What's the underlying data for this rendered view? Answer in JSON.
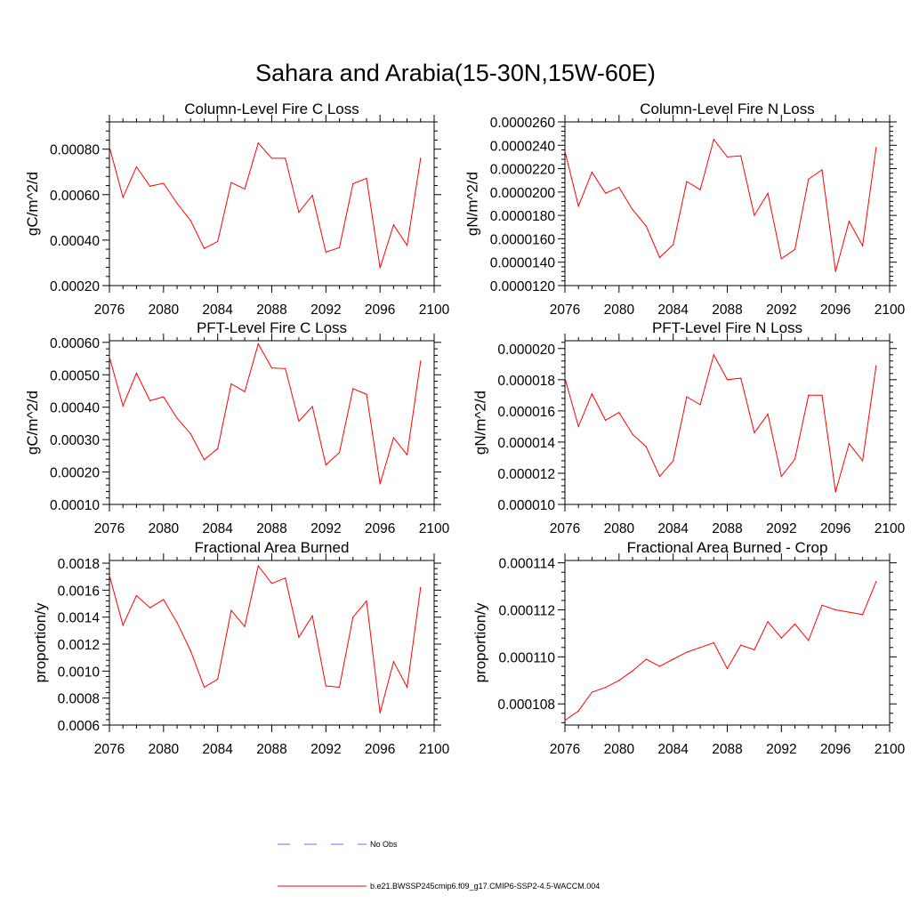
{
  "figure": {
    "title": "Sahara and Arabia(15-30N,15W-60E)"
  },
  "legend": [
    {
      "label": "No Obs",
      "color": "#6a6aff",
      "style": "dashed"
    },
    {
      "label": "b.e21.BWSSP245cmip6.f09_g17.CMIP6-SSP2-4.5-WACCM.004",
      "color": "#ff0000",
      "style": "solid"
    }
  ],
  "chart_data": [
    {
      "type": "line",
      "title": "Column-Level Fire C Loss",
      "ylabel": "gC/m^2/d",
      "xlim": [
        2076,
        2100
      ],
      "ylim": [
        0.0002,
        0.00092
      ],
      "xticks": [
        2076,
        2080,
        2084,
        2088,
        2092,
        2096,
        2100
      ],
      "xtick_labels": [
        "2076",
        "2080",
        "2084",
        "2088",
        "2092",
        "2096",
        "2100"
      ],
      "yticks": [
        0.0002,
        0.0004,
        0.0006,
        0.0008
      ],
      "ytick_labels": [
        "0.00020",
        "0.00040",
        "0.00060",
        "0.00080"
      ],
      "x": [
        2076,
        2077,
        2078,
        2079,
        2080,
        2081,
        2082,
        2083,
        2084,
        2085,
        2086,
        2087,
        2088,
        2089,
        2090,
        2091,
        2092,
        2093,
        2094,
        2095,
        2096,
        2097,
        2098,
        2099
      ],
      "series": [
        {
          "color": "#ff0000",
          "values": [
            0.00081,
            0.000588,
            0.000722,
            0.000637,
            0.00065,
            0.000562,
            0.000486,
            0.000363,
            0.000394,
            0.000653,
            0.000625,
            0.000827,
            0.00076,
            0.00076,
            0.000522,
            0.000597,
            0.000347,
            0.000367,
            0.000648,
            0.000672,
            0.000278,
            0.000467,
            0.000377,
            0.00076
          ]
        }
      ]
    },
    {
      "type": "line",
      "title": "Column-Level Fire N Loss",
      "ylabel": "gN/m^2/d",
      "xlim": [
        2076,
        2100
      ],
      "ylim": [
        1.2e-05,
        2.6e-05
      ],
      "xticks": [
        2076,
        2080,
        2084,
        2088,
        2092,
        2096,
        2100
      ],
      "xtick_labels": [
        "2076",
        "2080",
        "2084",
        "2088",
        "2092",
        "2096",
        "2100"
      ],
      "yticks": [
        1.2e-05,
        1.4e-05,
        1.6e-05,
        1.8e-05,
        2e-05,
        2.2e-05,
        2.4e-05,
        2.6e-05
      ],
      "ytick_labels": [
        "0.0000120",
        "0.0000140",
        "0.0000160",
        "0.0000180",
        "0.0000200",
        "0.0000220",
        "0.0000240",
        "0.0000260"
      ],
      "x": [
        2076,
        2077,
        2078,
        2079,
        2080,
        2081,
        2082,
        2083,
        2084,
        2085,
        2086,
        2087,
        2088,
        2089,
        2090,
        2091,
        2092,
        2093,
        2094,
        2095,
        2096,
        2097,
        2098,
        2099
      ],
      "series": [
        {
          "color": "#ff0000",
          "values": [
            2.35e-05,
            1.88e-05,
            2.17e-05,
            1.99e-05,
            2.04e-05,
            1.85e-05,
            1.71e-05,
            1.44e-05,
            1.55e-05,
            2.09e-05,
            2.02e-05,
            2.45e-05,
            2.3e-05,
            2.31e-05,
            1.8e-05,
            1.99e-05,
            1.43e-05,
            1.51e-05,
            2.11e-05,
            2.19e-05,
            1.32e-05,
            1.75e-05,
            1.54e-05,
            2.38e-05
          ]
        }
      ]
    },
    {
      "type": "line",
      "title": "PFT-Level Fire C Loss",
      "ylabel": "gC/m^2/d",
      "xlim": [
        2076,
        2100
      ],
      "ylim": [
        0.0001,
        0.000605
      ],
      "xticks": [
        2076,
        2080,
        2084,
        2088,
        2092,
        2096,
        2100
      ],
      "xtick_labels": [
        "2076",
        "2080",
        "2084",
        "2088",
        "2092",
        "2096",
        "2100"
      ],
      "yticks": [
        0.0001,
        0.0002,
        0.0003,
        0.0004,
        0.0005,
        0.0006
      ],
      "ytick_labels": [
        "0.00010",
        "0.00020",
        "0.00030",
        "0.00040",
        "0.00050",
        "0.00060"
      ],
      "x": [
        2076,
        2077,
        2078,
        2079,
        2080,
        2081,
        2082,
        2083,
        2084,
        2085,
        2086,
        2087,
        2088,
        2089,
        2090,
        2091,
        2092,
        2093,
        2094,
        2095,
        2096,
        2097,
        2098,
        2099
      ],
      "series": [
        {
          "color": "#ff0000",
          "values": [
            0.000555,
            0.000404,
            0.000505,
            0.00042,
            0.000432,
            0.000366,
            0.000318,
            0.000238,
            0.000272,
            0.000472,
            0.000448,
            0.000595,
            0.000521,
            0.000519,
            0.000357,
            0.000402,
            0.000222,
            0.00026,
            0.000457,
            0.00044,
            0.000163,
            0.000306,
            0.000253,
            0.000542
          ]
        }
      ]
    },
    {
      "type": "line",
      "title": "PFT-Level Fire N Loss",
      "ylabel": "gN/m^2/d",
      "xlim": [
        2076,
        2100
      ],
      "ylim": [
        1e-05,
        2.05e-05
      ],
      "xticks": [
        2076,
        2080,
        2084,
        2088,
        2092,
        2096,
        2100
      ],
      "xtick_labels": [
        "2076",
        "2080",
        "2084",
        "2088",
        "2092",
        "2096",
        "2100"
      ],
      "yticks": [
        1e-05,
        1.2e-05,
        1.4e-05,
        1.6e-05,
        1.8e-05,
        2e-05
      ],
      "ytick_labels": [
        "0.000010",
        "0.000012",
        "0.000014",
        "0.000016",
        "0.000018",
        "0.000020"
      ],
      "x": [
        2076,
        2077,
        2078,
        2079,
        2080,
        2081,
        2082,
        2083,
        2084,
        2085,
        2086,
        2087,
        2088,
        2089,
        2090,
        2091,
        2092,
        2093,
        2094,
        2095,
        2096,
        2097,
        2098,
        2099
      ],
      "series": [
        {
          "color": "#ff0000",
          "values": [
            1.81e-05,
            1.5e-05,
            1.71e-05,
            1.54e-05,
            1.59e-05,
            1.45e-05,
            1.37e-05,
            1.18e-05,
            1.28e-05,
            1.69e-05,
            1.64e-05,
            1.96e-05,
            1.8e-05,
            1.81e-05,
            1.46e-05,
            1.58e-05,
            1.18e-05,
            1.29e-05,
            1.7e-05,
            1.7e-05,
            1.08e-05,
            1.39e-05,
            1.28e-05,
            1.89e-05
          ]
        }
      ]
    },
    {
      "type": "line",
      "title": "Fractional Area Burned",
      "ylabel": "proportion/y",
      "xlim": [
        2076,
        2100
      ],
      "ylim": [
        0.0006,
        0.00182
      ],
      "xticks": [
        2076,
        2080,
        2084,
        2088,
        2092,
        2096,
        2100
      ],
      "xtick_labels": [
        "2076",
        "2080",
        "2084",
        "2088",
        "2092",
        "2096",
        "2100"
      ],
      "yticks": [
        0.0006,
        0.0008,
        0.001,
        0.0012,
        0.0014,
        0.0016,
        0.0018
      ],
      "ytick_labels": [
        "0.0006",
        "0.0008",
        "0.0010",
        "0.0012",
        "0.0014",
        "0.0016",
        "0.0018"
      ],
      "x": [
        2076,
        2077,
        2078,
        2079,
        2080,
        2081,
        2082,
        2083,
        2084,
        2085,
        2086,
        2087,
        2088,
        2089,
        2090,
        2091,
        2092,
        2093,
        2094,
        2095,
        2096,
        2097,
        2098,
        2099
      ],
      "series": [
        {
          "color": "#ff0000",
          "values": [
            0.00171,
            0.00134,
            0.00156,
            0.00147,
            0.00153,
            0.00136,
            0.00115,
            0.00088,
            0.00094,
            0.00145,
            0.00133,
            0.00178,
            0.00165,
            0.00169,
            0.00125,
            0.00141,
            0.00089,
            0.00088,
            0.0014,
            0.00152,
            0.00069,
            0.00107,
            0.00088,
            0.00162
          ]
        }
      ]
    },
    {
      "type": "line",
      "title": "Fractional Area Burned - Crop",
      "ylabel": "proportion/y",
      "xlim": [
        2076,
        2100
      ],
      "ylim": [
        0.0001071,
        0.0001141
      ],
      "xticks": [
        2076,
        2080,
        2084,
        2088,
        2092,
        2096,
        2100
      ],
      "xtick_labels": [
        "2076",
        "2080",
        "2084",
        "2088",
        "2092",
        "2096",
        "2100"
      ],
      "yticks": [
        0.000108,
        0.00011,
        0.000112,
        0.000114
      ],
      "ytick_labels": [
        "0.000108",
        "0.000110",
        "0.000112",
        "0.000114"
      ],
      "x": [
        2076,
        2077,
        2078,
        2079,
        2080,
        2081,
        2082,
        2083,
        2084,
        2085,
        2086,
        2087,
        2088,
        2089,
        2090,
        2091,
        2092,
        2093,
        2094,
        2095,
        2096,
        2097,
        2098,
        2099
      ],
      "series": [
        {
          "color": "#ff0000",
          "values": [
            0.0001073,
            0.0001077,
            0.0001085,
            0.0001087,
            0.000109,
            0.0001094,
            0.0001099,
            0.0001096,
            0.0001099,
            0.0001102,
            0.0001104,
            0.0001106,
            0.0001095,
            0.0001105,
            0.0001103,
            0.0001115,
            0.0001108,
            0.0001114,
            0.0001107,
            0.0001122,
            0.000112,
            0.0001119,
            0.0001118,
            0.0001132
          ]
        }
      ]
    }
  ]
}
